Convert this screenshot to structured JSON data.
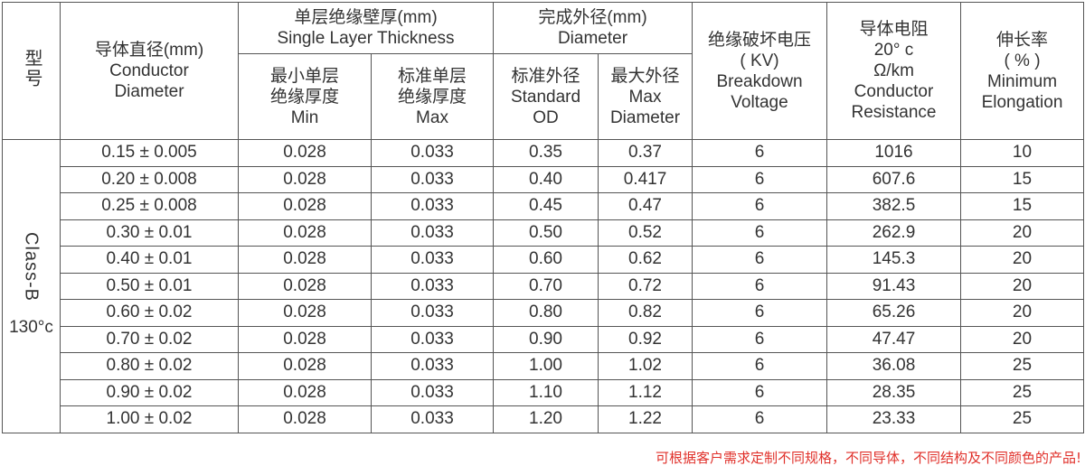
{
  "header": {
    "model": "型号",
    "conductor_diameter": [
      "导体直径(mm)",
      "Conductor",
      "Diameter"
    ],
    "single_layer": [
      "单层绝缘壁厚(mm)",
      "Single Layer Thickness"
    ],
    "min_single": [
      "最小单层",
      "绝缘厚度",
      "Min"
    ],
    "std_single": [
      "标准单层",
      "绝缘厚度",
      "Max"
    ],
    "outer_diameter": [
      "完成外径(mm)",
      "Diameter"
    ],
    "std_od": [
      "标准外径",
      "Standard",
      "OD"
    ],
    "max_od": [
      "最大外径",
      "Max",
      "Diameter"
    ],
    "breakdown": [
      "绝缘破坏电压",
      "( KV)",
      "Breakdown",
      "Voltage"
    ],
    "resistance": [
      "导体电阻",
      "20°  c",
      "Ω/km",
      "Conductor",
      "Resistance"
    ],
    "elongation": [
      "伸长率",
      "( % )",
      "Minimum",
      "Elongation"
    ]
  },
  "class_label": "Class-B",
  "class_temp": "130°c",
  "rows": [
    [
      "0.15 ± 0.005",
      "0.028",
      "0.033",
      "0.35",
      "0.37",
      "6",
      "1016",
      "10"
    ],
    [
      "0.20 ± 0.008",
      "0.028",
      "0.033",
      "0.40",
      "0.417",
      "6",
      "607.6",
      "15"
    ],
    [
      "0.25 ± 0.008",
      "0.028",
      "0.033",
      "0.45",
      "0.47",
      "6",
      "382.5",
      "15"
    ],
    [
      "0.30 ± 0.01",
      "0.028",
      "0.033",
      "0.50",
      "0.52",
      "6",
      "262.9",
      "20"
    ],
    [
      "0.40 ± 0.01",
      "0.028",
      "0.033",
      "0.60",
      "0.62",
      "6",
      "145.3",
      "20"
    ],
    [
      "0.50 ± 0.01",
      "0.028",
      "0.033",
      "0.70",
      "0.72",
      "6",
      "91.43",
      "20"
    ],
    [
      "0.60 ± 0.02",
      "0.028",
      "0.033",
      "0.80",
      "0.82",
      "6",
      "65.26",
      "20"
    ],
    [
      "0.70 ± 0.02",
      "0.028",
      "0.033",
      "0.90",
      "0.92",
      "6",
      "47.47",
      "20"
    ],
    [
      "0.80 ± 0.02",
      "0.028",
      "0.033",
      "1.00",
      "1.02",
      "6",
      "36.08",
      "25"
    ],
    [
      "0.90 ± 0.02",
      "0.028",
      "0.033",
      "1.10",
      "1.12",
      "6",
      "28.35",
      "25"
    ],
    [
      "1.00 ± 0.02",
      "0.028",
      "0.033",
      "1.20",
      "1.22",
      "6",
      "23.33",
      "25"
    ]
  ],
  "footnote": "可根据客户需求定制不同规格，不同导体，不同结构及不同颜色的产品!",
  "colors": {
    "footnote": "#e0302a",
    "border": "#555555",
    "text": "#333333"
  }
}
